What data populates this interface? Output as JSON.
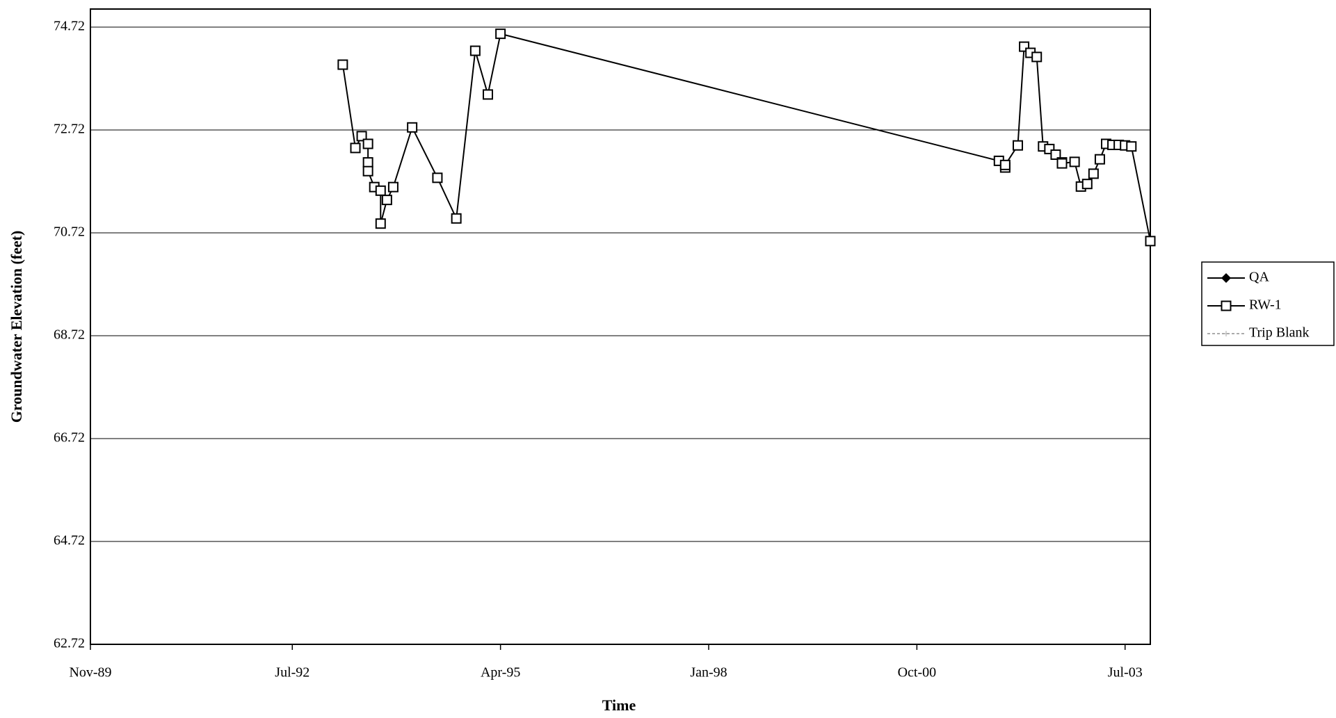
{
  "chart_data": {
    "type": "line",
    "x_label": "Time",
    "y_label": "Groundwater Elevation (feet)",
    "x": [
      "1993-03",
      "1993-05",
      "1993-06",
      "1993-07",
      "1993-07",
      "1993-07",
      "1993-08",
      "1993-09",
      "1993-09",
      "1993-10",
      "1993-11",
      "1994-02",
      "1994-06",
      "1994-09",
      "1994-12",
      "1995-02",
      "1995-04",
      "2001-11",
      "2001-12",
      "2001-12",
      "2002-02",
      "2002-03",
      "2002-04",
      "2002-05",
      "2002-06",
      "2002-07",
      "2002-08",
      "2002-09",
      "2002-09",
      "2002-11",
      "2002-12",
      "2003-01",
      "2003-02",
      "2003-03",
      "2003-04",
      "2003-05",
      "2003-06",
      "2003-07",
      "2003-08",
      "2003-11"
    ],
    "series": [
      {
        "name": "QA",
        "color": "#000000",
        "values": [
          null,
          null,
          null,
          null,
          null,
          null,
          null,
          null,
          null,
          null,
          null,
          null,
          null,
          null,
          null,
          null,
          null,
          null,
          null,
          null,
          null,
          null,
          null,
          null,
          null,
          null,
          null,
          null,
          null,
          null,
          null,
          null,
          null,
          null,
          null,
          null,
          null,
          null,
          null,
          null
        ]
      },
      {
        "name": "RW-1",
        "color": "#000000",
        "values": [
          73.99,
          72.37,
          72.6,
          72.45,
          72.09,
          71.92,
          71.61,
          71.54,
          70.9,
          71.36,
          71.61,
          72.77,
          71.79,
          71.0,
          74.26,
          73.41,
          74.59,
          72.12,
          71.99,
          72.04,
          72.42,
          74.34,
          74.22,
          74.14,
          72.4,
          72.35,
          72.24,
          72.09,
          72.07,
          72.1,
          71.62,
          71.67,
          71.87,
          72.15,
          72.45,
          72.43,
          72.43,
          72.42,
          72.4,
          70.56
        ]
      },
      {
        "name": "Trip Blank",
        "color": "#aaaaaa",
        "values": [
          null,
          null,
          null,
          null,
          null,
          null,
          null,
          null,
          null,
          null,
          null,
          null,
          null,
          null,
          null,
          null,
          null,
          null,
          null,
          null,
          null,
          null,
          null,
          null,
          null,
          null,
          null,
          null,
          null,
          null,
          null,
          null,
          null,
          null,
          null,
          null,
          null,
          null,
          null,
          null
        ]
      }
    ],
    "xlim": [
      "1989-11",
      "2003-11"
    ],
    "xticks": [
      {
        "value": "1989-11",
        "label": "Nov-89"
      },
      {
        "value": "1992-07",
        "label": "Jul-92"
      },
      {
        "value": "1995-04",
        "label": "Apr-95"
      },
      {
        "value": "1998-01",
        "label": "Jan-98"
      },
      {
        "value": "2000-10",
        "label": "Oct-00"
      },
      {
        "value": "2003-07",
        "label": "Jul-03"
      }
    ],
    "ylim": [
      62.72,
      74.72
    ],
    "yticks": [
      62.72,
      64.72,
      66.72,
      68.72,
      70.72,
      72.72,
      74.72
    ],
    "grid": true,
    "legend": "right"
  }
}
